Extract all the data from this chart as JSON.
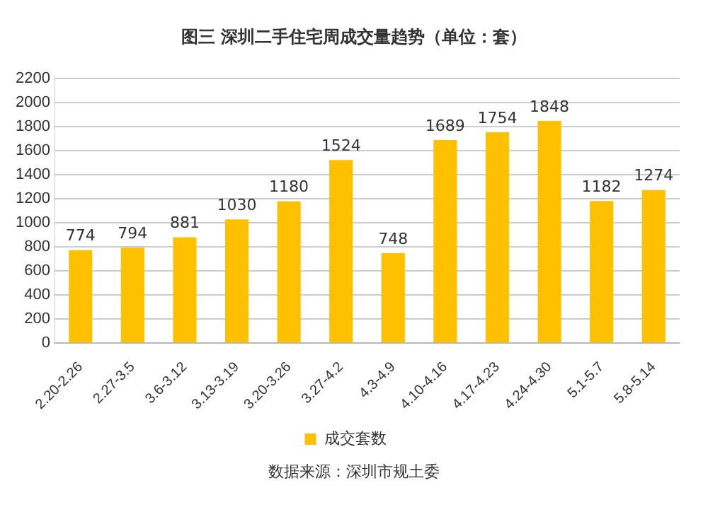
{
  "chart_data": {
    "type": "bar",
    "title": "图三  深圳二手住宅周成交量趋势（单位：套）",
    "categories": [
      "2.20-2.26",
      "2.27-3.5",
      "3.6-3.12",
      "3.13-3.19",
      "3.20-3.26",
      "3.27-4.2",
      "4.3-4.9",
      "4.10-4.16",
      "4.17-4.23",
      "4.24-4.30",
      "5.1-5.7",
      "5.8-5.14"
    ],
    "series": [
      {
        "name": "成交套数",
        "color": "#ffc000",
        "values": [
          774,
          794,
          881,
          1030,
          1180,
          1524,
          748,
          1689,
          1754,
          1848,
          1182,
          1274
        ]
      }
    ],
    "ylim": [
      0,
      2200
    ],
    "yticks": [
      0,
      200,
      400,
      600,
      800,
      1000,
      1200,
      1400,
      1600,
      1800,
      2000,
      2200
    ],
    "grid": "y",
    "legend": "bottom",
    "data_labels": true,
    "annotations": [
      "数据来源：深圳市规土委"
    ]
  }
}
